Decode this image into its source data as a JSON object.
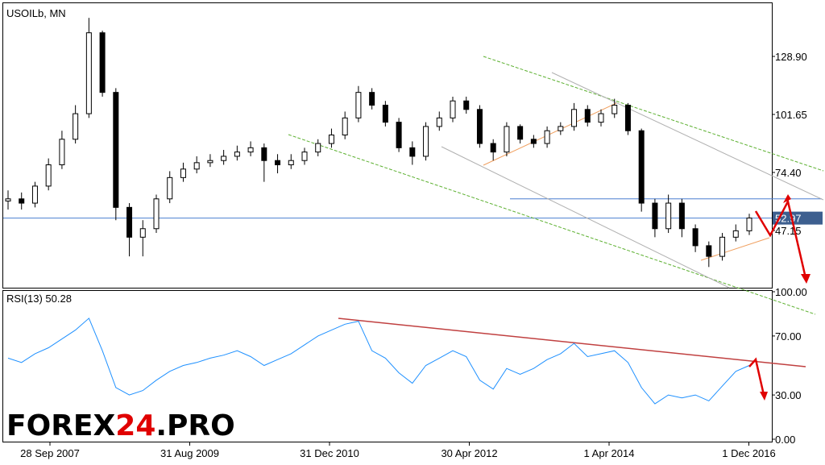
{
  "chart_data": {
    "type": "candlestick",
    "title": "USOILb, MN",
    "ylim": [
      20.28,
      154.26
    ],
    "yticks": [
      {
        "value": 47.15,
        "label": "47.15"
      },
      {
        "value": 74.4,
        "label": "74.40"
      },
      {
        "value": 101.65,
        "label": "101.65"
      },
      {
        "value": 128.9,
        "label": "128.90"
      }
    ],
    "current_price": {
      "value": 52.97,
      "label": "52.97"
    },
    "level_line": 62,
    "x_labels": [
      "28 Sep 2007",
      "31 Aug 2009",
      "31 Dec 2010",
      "30 Apr 2012",
      "1 Apr 2014",
      "1 Dec 2016"
    ],
    "open": [
      61,
      62,
      60,
      68,
      78,
      90,
      102,
      140,
      112,
      58,
      44,
      48,
      62,
      72,
      76,
      79,
      80,
      82,
      84,
      86,
      80,
      78,
      80,
      84,
      88,
      92,
      100,
      112,
      106,
      98,
      86,
      82,
      96,
      100,
      108,
      104,
      88,
      84,
      96,
      90,
      88,
      94,
      96,
      104,
      98,
      102,
      106,
      94,
      60,
      48,
      60,
      48,
      40,
      35,
      44,
      47
    ],
    "high": [
      66,
      65,
      70,
      81,
      94,
      106,
      147,
      141,
      114,
      60,
      52,
      64,
      75,
      79,
      82,
      83,
      85,
      87,
      89,
      88,
      83,
      83,
      86,
      90,
      95,
      103,
      115,
      114,
      108,
      100,
      89,
      98,
      103,
      110,
      110,
      106,
      90,
      98,
      97,
      92,
      96,
      98,
      107,
      106,
      104,
      109,
      107,
      95,
      62,
      64,
      62,
      50,
      42,
      46,
      50,
      55
    ],
    "low": [
      57,
      57,
      58,
      66,
      76,
      88,
      100,
      110,
      52,
      35,
      35,
      46,
      60,
      70,
      74,
      77,
      78,
      80,
      82,
      70,
      74,
      76,
      78,
      82,
      86,
      90,
      98,
      104,
      96,
      84,
      78,
      80,
      94,
      98,
      102,
      86,
      80,
      82,
      88,
      86,
      86,
      92,
      94,
      96,
      96,
      100,
      92,
      56,
      44,
      46,
      44,
      37,
      30,
      33,
      42,
      45
    ],
    "close": [
      62,
      60,
      68,
      78,
      90,
      102,
      140,
      112,
      58,
      44,
      48,
      62,
      72,
      76,
      79,
      80,
      82,
      84,
      86,
      80,
      78,
      80,
      84,
      88,
      92,
      100,
      112,
      106,
      98,
      86,
      82,
      96,
      100,
      108,
      104,
      88,
      84,
      96,
      90,
      88,
      94,
      96,
      104,
      98,
      102,
      106,
      94,
      60,
      48,
      60,
      48,
      40,
      35,
      44,
      47,
      53
    ],
    "rsi": {
      "label": "RSI(13) 50.28",
      "color": "#1e90ff",
      "ylim": [
        0,
        100
      ],
      "yticks": [
        {
          "value": 0,
          "label": "0.00"
        },
        {
          "value": 30,
          "label": "30.00"
        },
        {
          "value": 70,
          "label": "70.00"
        },
        {
          "value": 100,
          "label": "100.00"
        }
      ],
      "values": [
        55,
        52,
        58,
        62,
        68,
        74,
        82,
        60,
        35,
        30,
        33,
        40,
        46,
        50,
        52,
        55,
        57,
        60,
        56,
        50,
        54,
        58,
        64,
        70,
        74,
        78,
        80,
        60,
        55,
        45,
        38,
        50,
        55,
        60,
        56,
        40,
        34,
        48,
        44,
        48,
        54,
        58,
        65,
        56,
        58,
        60,
        52,
        35,
        24,
        30,
        28,
        30,
        26,
        36,
        46,
        50
      ]
    },
    "watermark": [
      "FOREX",
      "24",
      ".PRO"
    ]
  }
}
